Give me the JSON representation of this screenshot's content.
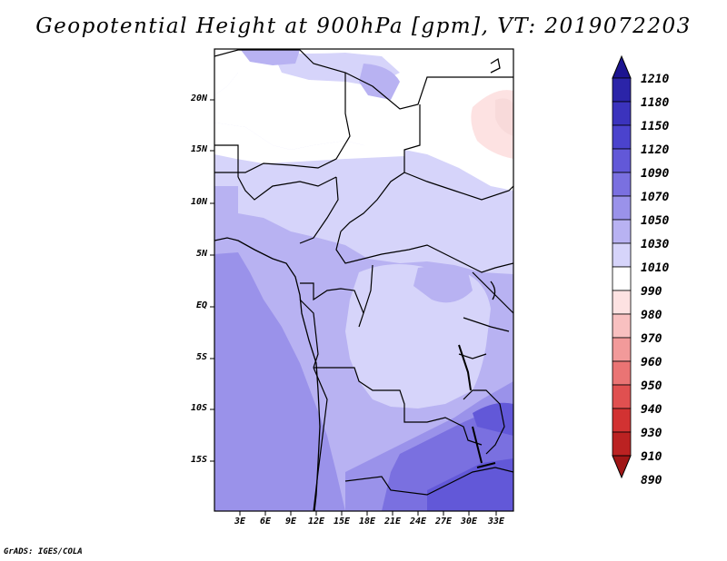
{
  "title": "Geopotential Height at 900hPa [gpm], VT: 2019072203",
  "footer": "GrADS: IGES/COLA",
  "map": {
    "latitude_labels": [
      "20N",
      "15N",
      "10N",
      "5N",
      "EQ",
      "5S",
      "10S",
      "15S"
    ],
    "longitude_labels": [
      "3E",
      "6E",
      "9E",
      "12E",
      "15E",
      "18E",
      "21E",
      "24E",
      "27E",
      "30E",
      "33E"
    ]
  },
  "colorbar": {
    "labels": [
      "1210",
      "1180",
      "1150",
      "1120",
      "1090",
      "1070",
      "1050",
      "1030",
      "1010",
      "990",
      "980",
      "970",
      "960",
      "950",
      "940",
      "930",
      "910",
      "890"
    ],
    "colors": [
      "#1c1490",
      "#2b24a8",
      "#3b33bd",
      "#4b43cd",
      "#6258d8",
      "#7a70e0",
      "#9a92ea",
      "#b8b2f2",
      "#d6d4fa",
      "#ffffff",
      "#fde2e2",
      "#f8c0c0",
      "#f29a9a",
      "#ea7474",
      "#e05050",
      "#d23232",
      "#bb2222",
      "#a01616"
    ]
  }
}
